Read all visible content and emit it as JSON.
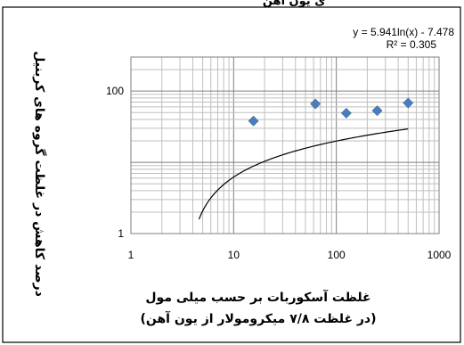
{
  "chart_data": {
    "type": "scatter",
    "scale": {
      "x": "log",
      "y": "log"
    },
    "xlim": [
      1,
      1000
    ],
    "ylim": [
      1,
      300
    ],
    "x_ticks": [
      "1",
      "10",
      "100",
      "1000"
    ],
    "y_ticks": [
      "1",
      "100"
    ],
    "grid": "major and minor (log)",
    "series": [
      {
        "type": "scatter",
        "marker": "diamond",
        "color": "#4a7ebb",
        "points": [
          {
            "x": 15.6,
            "y": 38
          },
          {
            "x": 62.5,
            "y": 66
          },
          {
            "x": 125,
            "y": 49
          },
          {
            "x": 250,
            "y": 53
          },
          {
            "x": 500,
            "y": 68
          }
        ]
      },
      {
        "type": "trendline",
        "equation_form": "y = a*ln(x) + b",
        "a": 5.941,
        "b": -7.478,
        "x_start": 4.6,
        "x_end": 500,
        "color": "#000000"
      }
    ],
    "equation": "y = 5.941ln(x) - 7.478",
    "r_squared": "R² = 0.305",
    "ylabel": "درصد کاهش در غلظت گروه های کربنیل",
    "xlabel_line1": "غلظت آسکوربات بر حسب میلی مول",
    "xlabel_line2": "(در غلظت ۷/۸ میکرومولار از یون آهن)",
    "top_cut_text": "ی یون آهن"
  }
}
